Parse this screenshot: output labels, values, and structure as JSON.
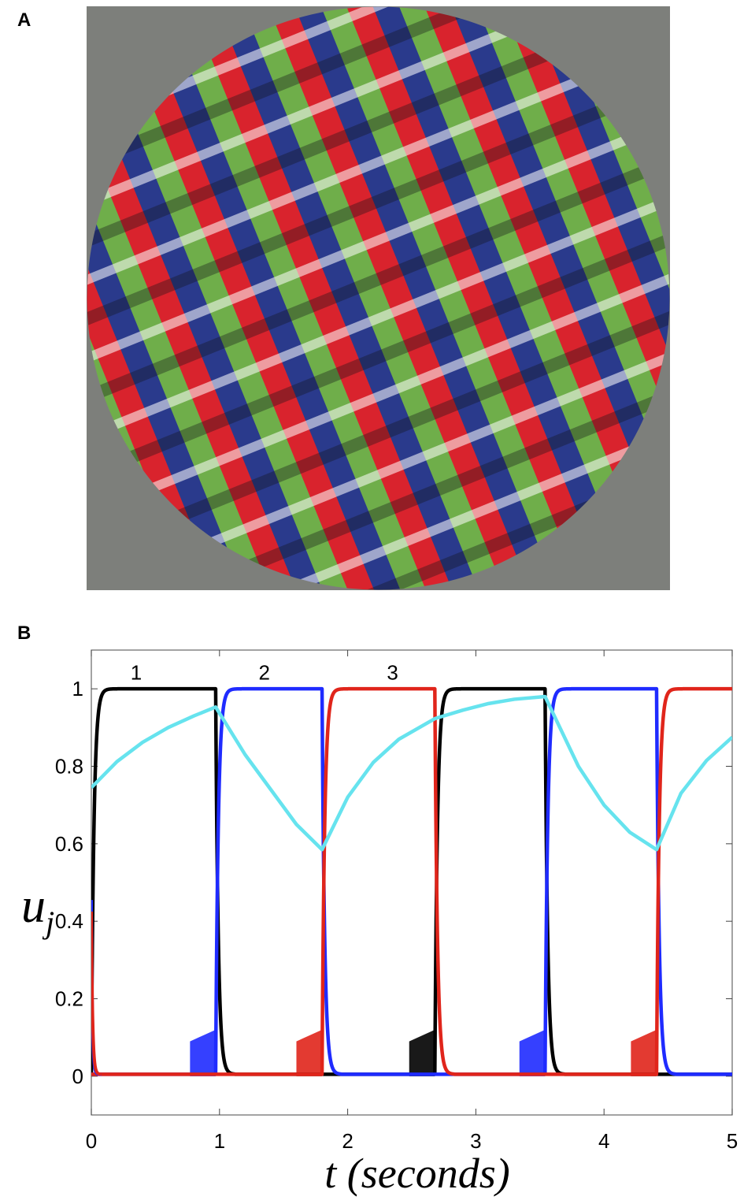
{
  "panels": {
    "a": {
      "label": "A"
    },
    "b": {
      "label": "B"
    }
  },
  "stimulus": {
    "colors": {
      "background": "#7d7f7b",
      "green": "#6fae4a",
      "red": "#d9232d",
      "blue": "#2a3a8c",
      "white": "#ffffff",
      "black": "#101018"
    }
  },
  "chart_data": {
    "type": "line",
    "xlabel": "t (seconds)",
    "ylabel": "u",
    "ylabel_subscript": "j",
    "xlim": [
      0,
      5
    ],
    "ylim": [
      -0.1,
      1.1
    ],
    "xticks": [
      0,
      1,
      2,
      3,
      4,
      5
    ],
    "yticks": [
      0,
      0.2,
      0.4,
      0.6,
      0.8,
      1
    ],
    "grid": false,
    "annotations": [
      {
        "text": "1",
        "x": 0.35,
        "y": 1.04
      },
      {
        "text": "2",
        "x": 1.35,
        "y": 1.04
      },
      {
        "text": "3",
        "x": 2.35,
        "y": 1.04
      }
    ],
    "dominance_switch_times": [
      0,
      0.97,
      1.8,
      2.68,
      3.54,
      4.41,
      5.05
    ],
    "dominance_order": [
      "black",
      "blue",
      "red"
    ],
    "series": [
      {
        "color": "#000000",
        "description": "population 1 activity",
        "active_intervals": [
          [
            0,
            0.97
          ],
          [
            2.68,
            3.54
          ]
        ]
      },
      {
        "color": "#1f2bff",
        "description": "population 2 activity",
        "active_intervals": [
          [
            0.97,
            1.8
          ],
          [
            3.54,
            4.41
          ]
        ]
      },
      {
        "color": "#e0251b",
        "description": "population 3 activity",
        "active_intervals": [
          [
            1.8,
            2.68
          ],
          [
            4.41,
            5.05
          ]
        ]
      },
      {
        "color": "#66e3ee",
        "description": "slow variable",
        "x": [
          0,
          0.2,
          0.4,
          0.6,
          0.8,
          0.97,
          1.2,
          1.4,
          1.6,
          1.8,
          2.0,
          2.2,
          2.4,
          2.68,
          2.9,
          3.1,
          3.3,
          3.54,
          3.8,
          4.0,
          4.2,
          4.41,
          4.6,
          4.8,
          5.0
        ],
        "y": [
          0.745,
          0.812,
          0.862,
          0.9,
          0.93,
          0.953,
          0.83,
          0.74,
          0.65,
          0.585,
          0.72,
          0.81,
          0.87,
          0.923,
          0.945,
          0.962,
          0.973,
          0.98,
          0.8,
          0.7,
          0.63,
          0.585,
          0.73,
          0.815,
          0.875
        ]
      }
    ]
  }
}
